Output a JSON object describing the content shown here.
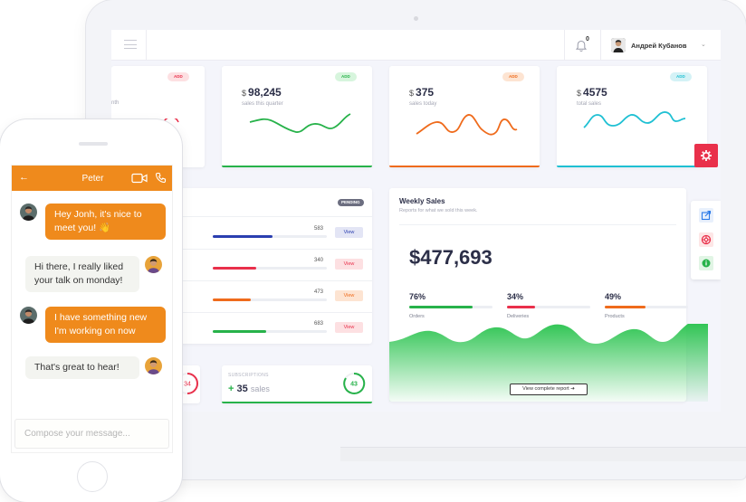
{
  "topbar": {
    "notification_count": "0",
    "user_name": "Андрей Кубанов"
  },
  "stat_cards": [
    {
      "badge": "ADD",
      "value": "98,245",
      "currency": "$",
      "label": "sales this quarter",
      "accent": "#27b24a",
      "badge_bg": "#d7f5dd",
      "badge_color": "#27b24a"
    },
    {
      "badge": "ADD",
      "value": "375",
      "currency": "$",
      "label": "sales today",
      "accent": "#ef6b1c",
      "badge_bg": "#fde4d2",
      "badge_color": "#ef6b1c"
    },
    {
      "badge": "ADD",
      "value": "4575",
      "currency": "$",
      "label": "total sales",
      "accent": "#1fc0d3",
      "badge_bg": "#d4f2f6",
      "badge_color": "#1fc0d3"
    }
  ],
  "left_partial_card": {
    "badge": "ADD",
    "label_fragment": "nth",
    "badge_bg": "#fde0e2",
    "badge_color": "#e9304b"
  },
  "pending": {
    "badge": "PENDING",
    "rows": [
      {
        "value": "583",
        "fill": 0.52,
        "color": "#2b3fb0",
        "button": "View",
        "btn_bg": "#e3e5f5",
        "btn_color": "#2b3fb0"
      },
      {
        "value": "340",
        "fill": 0.38,
        "color": "#e9304b",
        "button": "View",
        "btn_bg": "#fde0e2",
        "btn_color": "#e9304b"
      },
      {
        "value": "473",
        "fill": 0.33,
        "color": "#ef6b1c",
        "button": "View",
        "btn_bg": "#fde4d2",
        "btn_color": "#ef6b1c"
      },
      {
        "value": "683",
        "fill": 0.47,
        "color": "#27b24a",
        "button": "View",
        "btn_bg": "#fde0e2",
        "btn_color": "#e9304b"
      }
    ]
  },
  "weekly": {
    "title": "Weekly Sales",
    "subtitle": "Reports for what we sold this week.",
    "total": "$477,693",
    "stats": [
      {
        "pct": "76%",
        "fill": 0.76,
        "color": "#27b24a",
        "label": "Orders"
      },
      {
        "pct": "34%",
        "fill": 0.34,
        "color": "#e9304b",
        "label": "Deliveries"
      },
      {
        "pct": "49%",
        "fill": 0.49,
        "color": "#ef6b1c",
        "label": "Products"
      }
    ],
    "report_button": "View complete report"
  },
  "subscriptions": {
    "label": "SUBSCRIPTIONS",
    "plus": "+",
    "value": "35",
    "unit": "sales",
    "ring_value": "43",
    "ring_fill": 0.43
  },
  "left_small_card": {
    "ring_value": "34"
  },
  "side_panel": {
    "icons": [
      "share-icon",
      "support-icon",
      "info-icon"
    ]
  },
  "chat": {
    "contact": "Peter",
    "messages": [
      {
        "dir": "out",
        "text": "Hey Jonh, it's nice to meet you! 👋"
      },
      {
        "dir": "in",
        "text": "Hi there, I really liked your talk on monday!"
      },
      {
        "dir": "out",
        "text": "I have something new I'm working on now"
      },
      {
        "dir": "in",
        "text": "That's great to hear!"
      }
    ],
    "compose_placeholder": "Compose your message..."
  },
  "colors": {
    "orange": "#ef8a1c",
    "green": "#27b24a",
    "red": "#e9304b",
    "cyan": "#1fc0d3",
    "navy": "#2c2f48"
  }
}
